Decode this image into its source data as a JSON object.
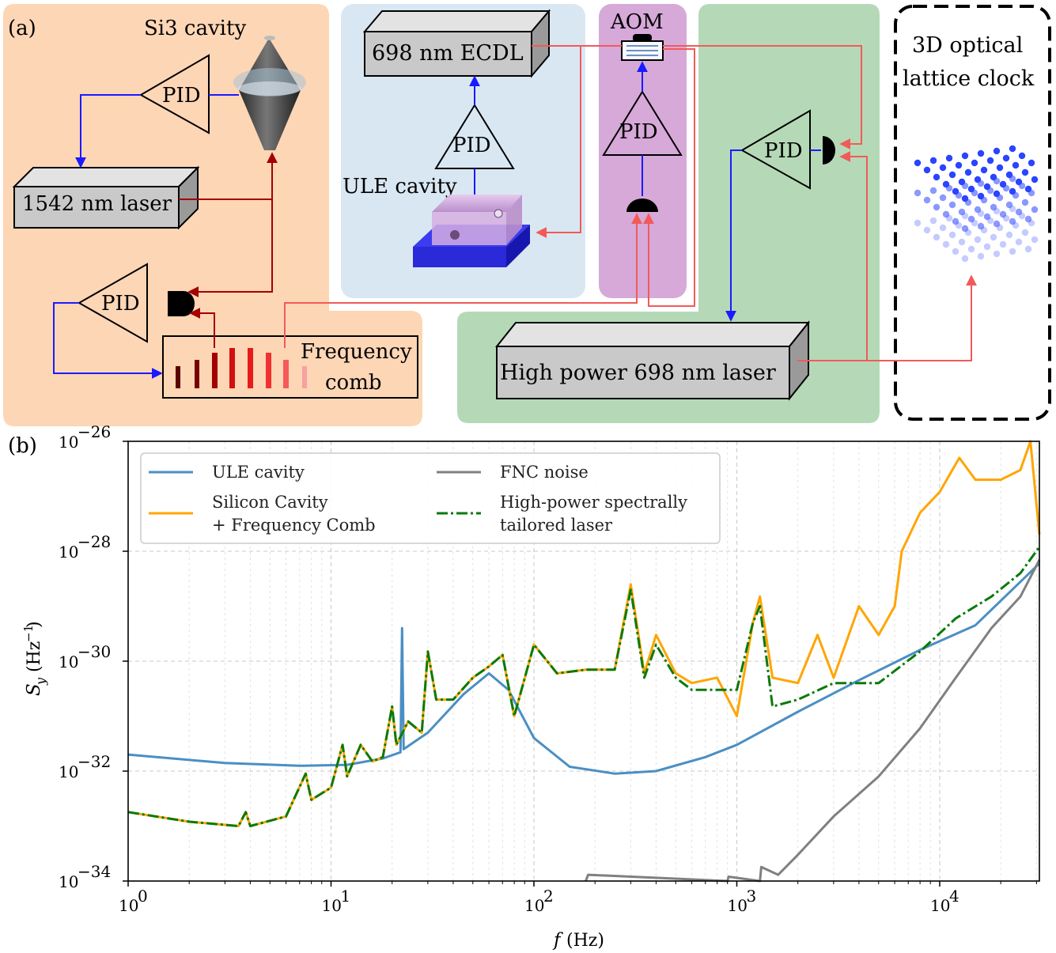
{
  "panel_a": {
    "label": "(a)",
    "si3_cavity": "Si3 cavity",
    "pid": "PID",
    "laser_1542": "1542 nm laser",
    "frequency_comb_line1": "Frequency",
    "frequency_comb_line2": "comb",
    "ecdl": "698 nm ECDL",
    "ule_cavity": "ULE cavity",
    "aom": "AOM",
    "high_power_laser": "High power 698 nm laser",
    "clock_line1": "3D optical",
    "clock_line2": "lattice  clock",
    "colors": {
      "orange_bg": "#fdd6b6",
      "blue_bg": "#d9e7f2",
      "purple_bg": "#d6a9d9",
      "green_bg": "#b5d9b7",
      "laser_red": "#f25a5a",
      "dark_red": "#a30000",
      "feedback_blue": "#1a1aff"
    }
  },
  "panel_b": {
    "label": "(b)",
    "chart_data": {
      "type": "line",
      "xlabel": "f (Hz)",
      "ylabel": "S_y (Hz^-1)",
      "x_scale": "log",
      "y_scale": "log",
      "xlim": [
        1,
        31000
      ],
      "ylim": [
        1e-34,
        1e-26
      ],
      "x_ticks": [
        "10^0",
        "10^1",
        "10^2",
        "10^3",
        "10^4"
      ],
      "y_ticks": [
        "10^-34",
        "10^-32",
        "10^-30",
        "10^-28",
        "10^-26"
      ],
      "grid": true,
      "legend_position": "top-left",
      "series": [
        {
          "name": "ULE cavity",
          "color": "#4a8fc4",
          "x": [
            1,
            3,
            7,
            12,
            18,
            22,
            22.4,
            22.8,
            30,
            45,
            60,
            75,
            100,
            150,
            250,
            400,
            700,
            1000,
            2000,
            4000,
            8000,
            15000,
            31000
          ],
          "y": [
            2e-32,
            1.4e-32,
            1.25e-32,
            1.3e-32,
            1.7e-32,
            2.2e-32,
            4e-30,
            2.5e-32,
            5e-32,
            2.5e-31,
            6e-31,
            3e-31,
            4e-32,
            1.2e-32,
            9e-33,
            1e-32,
            1.8e-32,
            3e-32,
            1.2e-31,
            4.5e-31,
            1.6e-30,
            4.5e-30,
            6e-29
          ]
        },
        {
          "name": "Silicon Cavity\n+ Frequency Comb",
          "color": "#ffa500",
          "x": [
            1,
            2,
            3.5,
            3.8,
            4,
            6,
            7.5,
            8,
            10,
            11.4,
            12,
            14,
            16,
            18,
            20,
            21,
            24,
            28,
            30,
            33,
            40,
            50,
            60,
            70,
            80,
            100,
            130,
            180,
            250,
            300,
            350,
            400,
            500,
            600,
            800,
            1000,
            1200,
            1300,
            1500,
            2000,
            2500,
            3000,
            4000,
            5000,
            6000,
            6500,
            8000,
            10000,
            12500,
            15000,
            20000,
            25000,
            28000,
            31000
          ],
          "y": [
            1.8e-33,
            1.2e-33,
            1e-33,
            1.8e-33,
            1e-33,
            1.5e-33,
            9e-33,
            3e-33,
            5e-33,
            3e-32,
            8e-33,
            3e-32,
            1.5e-32,
            1.8e-32,
            1.5e-31,
            3e-32,
            8e-32,
            5e-32,
            1.5e-30,
            2e-31,
            2e-31,
            5e-31,
            8e-31,
            1.3e-30,
            1e-31,
            2e-30,
            6e-31,
            7e-31,
            7e-31,
            2.5e-29,
            6e-31,
            3e-30,
            6e-31,
            4e-31,
            5e-31,
            1e-31,
            5e-30,
            1.5e-29,
            5e-31,
            4e-31,
            3e-30,
            5e-31,
            1e-29,
            3e-30,
            1e-29,
            1e-28,
            5e-28,
            1.2e-27,
            5e-27,
            2e-27,
            2e-27,
            3e-27,
            1e-26,
            2e-28
          ]
        },
        {
          "name": "FNC noise",
          "color": "#808080",
          "x": [
            180,
            185,
            900,
            910,
            1300,
            1320,
            1600,
            2000,
            3000,
            5000,
            8000,
            12000,
            18000,
            25000,
            31000
          ],
          "y": [
            1e-34,
            1.3e-34,
            1e-34,
            1.2e-34,
            1e-34,
            1.8e-34,
            1.3e-34,
            3e-34,
            1.5e-33,
            8e-33,
            6e-32,
            5e-31,
            4e-30,
            1.5e-29,
            7e-29
          ]
        },
        {
          "name": "High-power spectrally\ntailored laser",
          "color": "#0a7a0a",
          "x": [
            1,
            2,
            3.5,
            3.8,
            4,
            6,
            7.5,
            8,
            10,
            11.4,
            12,
            14,
            16,
            18,
            20,
            21,
            24,
            28,
            30,
            33,
            40,
            50,
            60,
            70,
            80,
            100,
            130,
            180,
            250,
            300,
            350,
            400,
            500,
            600,
            800,
            1000,
            1200,
            1300,
            1500,
            2000,
            3000,
            5000,
            8000,
            12000,
            18000,
            25000,
            31000
          ],
          "y": [
            1.8e-33,
            1.2e-33,
            1e-33,
            1.8e-33,
            1e-33,
            1.5e-33,
            9e-33,
            3e-33,
            5e-33,
            3e-32,
            8e-33,
            3e-32,
            1.5e-32,
            1.8e-32,
            1.5e-31,
            3e-32,
            8e-32,
            5e-32,
            1.5e-30,
            2e-31,
            2e-31,
            5e-31,
            8e-31,
            1.3e-30,
            1e-31,
            2e-30,
            6e-31,
            7e-31,
            7e-31,
            2e-29,
            5e-31,
            2e-30,
            5e-31,
            3e-31,
            3e-31,
            3e-31,
            5e-30,
            1e-29,
            1.5e-31,
            2e-31,
            4e-31,
            4e-31,
            1.5e-30,
            6e-30,
            1.5e-29,
            4e-29,
            1.2e-28
          ]
        }
      ]
    }
  }
}
